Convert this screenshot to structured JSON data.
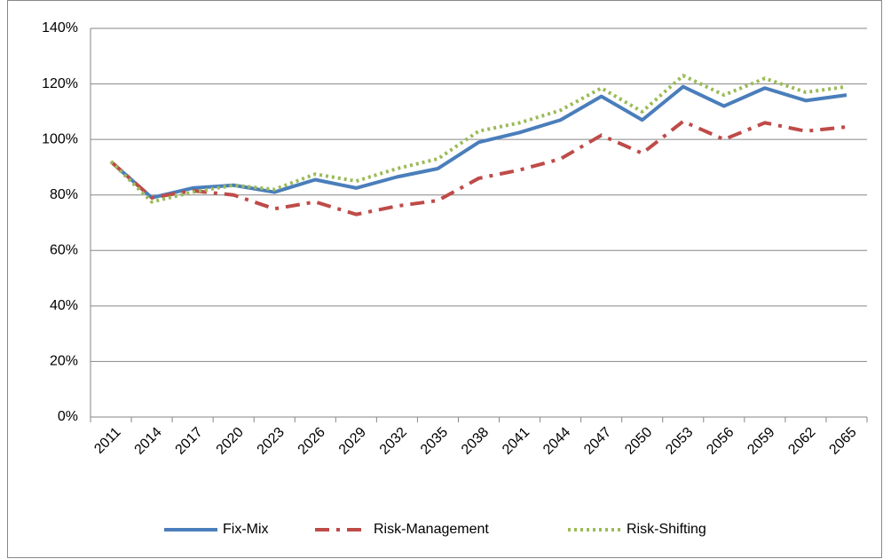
{
  "chart_data": {
    "type": "line",
    "categories": [
      "2011",
      "2014",
      "2017",
      "2020",
      "2023",
      "2026",
      "2029",
      "2032",
      "2035",
      "2038",
      "2041",
      "2044",
      "2047",
      "2050",
      "2053",
      "2056",
      "2059",
      "2062",
      "2065"
    ],
    "series": [
      {
        "name": "Fix-Mix",
        "color": "#4a7ebb",
        "dash": "solid",
        "values": [
          92,
          79,
          82.5,
          83.5,
          81,
          85.5,
          82.5,
          86.5,
          89.5,
          99,
          102.5,
          107,
          115.5,
          107,
          119,
          112,
          118.5,
          114,
          116
        ]
      },
      {
        "name": "Risk-Management",
        "color": "#be4b48",
        "dash": "dash-dot",
        "values": [
          92,
          79,
          81.5,
          80,
          75,
          77.5,
          73,
          76,
          78,
          86,
          89,
          93,
          101.5,
          95,
          106.5,
          100,
          106,
          103,
          104.5
        ]
      },
      {
        "name": "Risk-Shifting",
        "color": "#9bbb59",
        "dash": "dotted",
        "values": [
          92,
          77.5,
          81,
          83.5,
          82,
          87.5,
          85,
          89.5,
          93,
          103,
          106,
          110.5,
          118.5,
          110,
          123,
          116,
          122,
          117,
          119
        ]
      }
    ],
    "ylim": [
      0,
      140
    ],
    "yticks": [
      {
        "value": 0,
        "label": "0%"
      },
      {
        "value": 20,
        "label": "20%"
      },
      {
        "value": 40,
        "label": "40%"
      },
      {
        "value": 60,
        "label": "60%"
      },
      {
        "value": 80,
        "label": "80%"
      },
      {
        "value": 100,
        "label": "100%"
      },
      {
        "value": 120,
        "label": "120%"
      },
      {
        "value": 140,
        "label": "140%"
      }
    ],
    "grid": true,
    "legend": "bottom"
  }
}
